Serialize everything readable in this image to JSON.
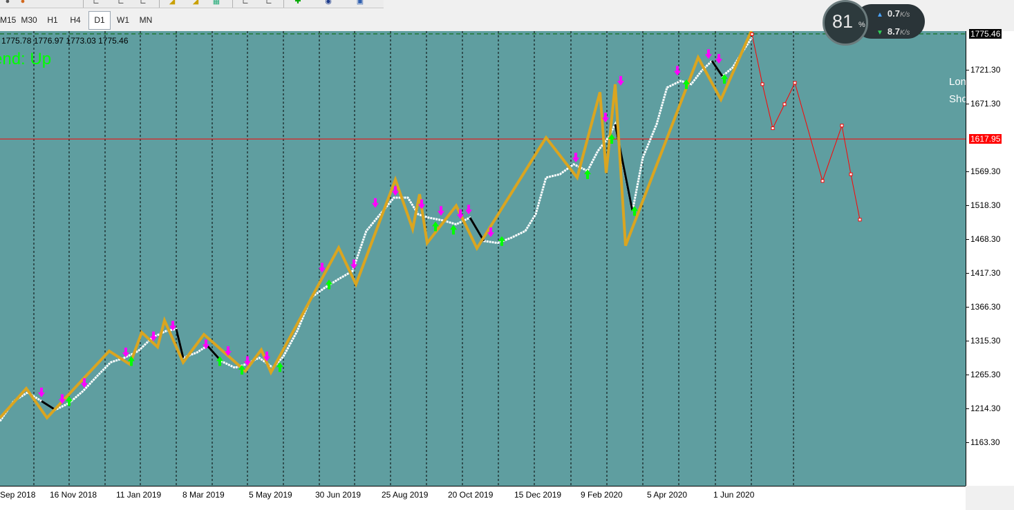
{
  "toolbar": {
    "timeframes": [
      "M15",
      "M30",
      "H1",
      "H4",
      "D1",
      "W1",
      "MN"
    ],
    "active_timeframe": "D1"
  },
  "ohlc_line": "1775.78 1776.97 1773.03 1775.46",
  "trend_label": "end: Up",
  "side_labels": {
    "long": "Lon",
    "short": "Sho",
    "top_char": "S"
  },
  "speed_widget": {
    "percent": "81",
    "percent_sign": "%",
    "upload": "0.7",
    "download": "8.7",
    "unit": "K/s"
  },
  "price_axis": {
    "ticks": [
      "1721.30",
      "1671.30",
      "1569.30",
      "1518.30",
      "1468.30",
      "1417.30",
      "1366.30",
      "1315.30",
      "1265.30",
      "1214.30",
      "1163.30"
    ],
    "current_price": "1775.46",
    "marked_price": "1617.95"
  },
  "time_axis": {
    "labels": [
      "Sep 2018",
      "16 Nov 2018",
      "11 Jan 2019",
      "8 Mar 2019",
      "5 May 2019",
      "30 Jun 2019",
      "25 Aug 2019",
      "20 Oct 2019",
      "15 Dec 2019",
      "9 Feb 2020",
      "5 Apr 2020",
      "1 Jun 2020"
    ]
  },
  "chart_data": {
    "type": "line",
    "symbol_timeframe": "D1",
    "ylim": [
      1140,
      1800
    ],
    "colors": {
      "background": "#5f9ea0",
      "price_line": "#ffffff",
      "zigzag": "#daa520",
      "projection": "#ff0000",
      "arrow_down": "#ff00ff",
      "arrow_up": "#00ff00",
      "bid_line": "#006400",
      "level_line": "#ff0000"
    },
    "series": [
      {
        "values": [
          [
            0,
            1195
          ],
          [
            20,
            1225
          ],
          [
            40,
            1238
          ],
          [
            60,
            1225
          ],
          [
            80,
            1212
          ],
          [
            100,
            1222
          ],
          [
            120,
            1240
          ],
          [
            140,
            1262
          ],
          [
            160,
            1283
          ],
          [
            180,
            1290
          ],
          [
            200,
            1300
          ],
          [
            220,
            1320
          ],
          [
            240,
            1330
          ],
          [
            255,
            1333
          ],
          [
            265,
            1290
          ],
          [
            285,
            1298
          ],
          [
            300,
            1308
          ],
          [
            320,
            1285
          ],
          [
            340,
            1275
          ],
          [
            355,
            1280
          ],
          [
            375,
            1290
          ],
          [
            395,
            1275
          ],
          [
            410,
            1292
          ],
          [
            430,
            1330
          ],
          [
            450,
            1380
          ],
          [
            470,
            1395
          ],
          [
            490,
            1408
          ],
          [
            510,
            1420
          ],
          [
            530,
            1480
          ],
          [
            550,
            1505
          ],
          [
            570,
            1530
          ],
          [
            590,
            1530
          ],
          [
            605,
            1505
          ],
          [
            620,
            1500
          ],
          [
            640,
            1496
          ],
          [
            660,
            1490
          ],
          [
            680,
            1500
          ],
          [
            700,
            1465
          ],
          [
            720,
            1462
          ],
          [
            740,
            1470
          ],
          [
            760,
            1480
          ],
          [
            775,
            1505
          ],
          [
            790,
            1560
          ],
          [
            810,
            1565
          ],
          [
            830,
            1580
          ],
          [
            850,
            1570
          ],
          [
            865,
            1600
          ],
          [
            880,
            1620
          ],
          [
            890,
            1640
          ],
          [
            905,
            1560
          ],
          [
            915,
            1510
          ],
          [
            930,
            1590
          ],
          [
            950,
            1640
          ],
          [
            965,
            1695
          ],
          [
            985,
            1705
          ],
          [
            1000,
            1700
          ],
          [
            1015,
            1720
          ],
          [
            1030,
            1735
          ],
          [
            1045,
            1712
          ],
          [
            1060,
            1725
          ],
          [
            1075,
            1750
          ],
          [
            1088,
            1770
          ]
        ]
      },
      {
        "values": [
          [
            0,
            1200
          ],
          [
            38,
            1244
          ],
          [
            68,
            1200
          ],
          [
            158,
            1300
          ],
          [
            188,
            1280
          ],
          [
            205,
            1328
          ],
          [
            228,
            1306
          ],
          [
            238,
            1346
          ],
          [
            265,
            1283
          ],
          [
            295,
            1325
          ],
          [
            355,
            1270
          ],
          [
            378,
            1302
          ],
          [
            392,
            1268
          ],
          [
            490,
            1455
          ],
          [
            515,
            1400
          ],
          [
            572,
            1557
          ],
          [
            597,
            1483
          ],
          [
            607,
            1535
          ],
          [
            618,
            1462
          ],
          [
            660,
            1518
          ],
          [
            690,
            1454
          ],
          [
            790,
            1620
          ],
          [
            835,
            1560
          ],
          [
            868,
            1688
          ],
          [
            877,
            1567
          ],
          [
            890,
            1700
          ],
          [
            905,
            1458
          ],
          [
            1010,
            1740
          ],
          [
            1043,
            1677
          ],
          [
            1087,
            1780
          ]
        ]
      },
      {
        "values": [
          [
            1088,
            1775
          ],
          [
            1103,
            1700
          ],
          [
            1118,
            1634
          ],
          [
            1135,
            1670
          ],
          [
            1150,
            1702
          ],
          [
            1190,
            1555
          ],
          [
            1218,
            1638
          ],
          [
            1231,
            1565
          ],
          [
            1244,
            1497
          ]
        ]
      }
    ]
  }
}
